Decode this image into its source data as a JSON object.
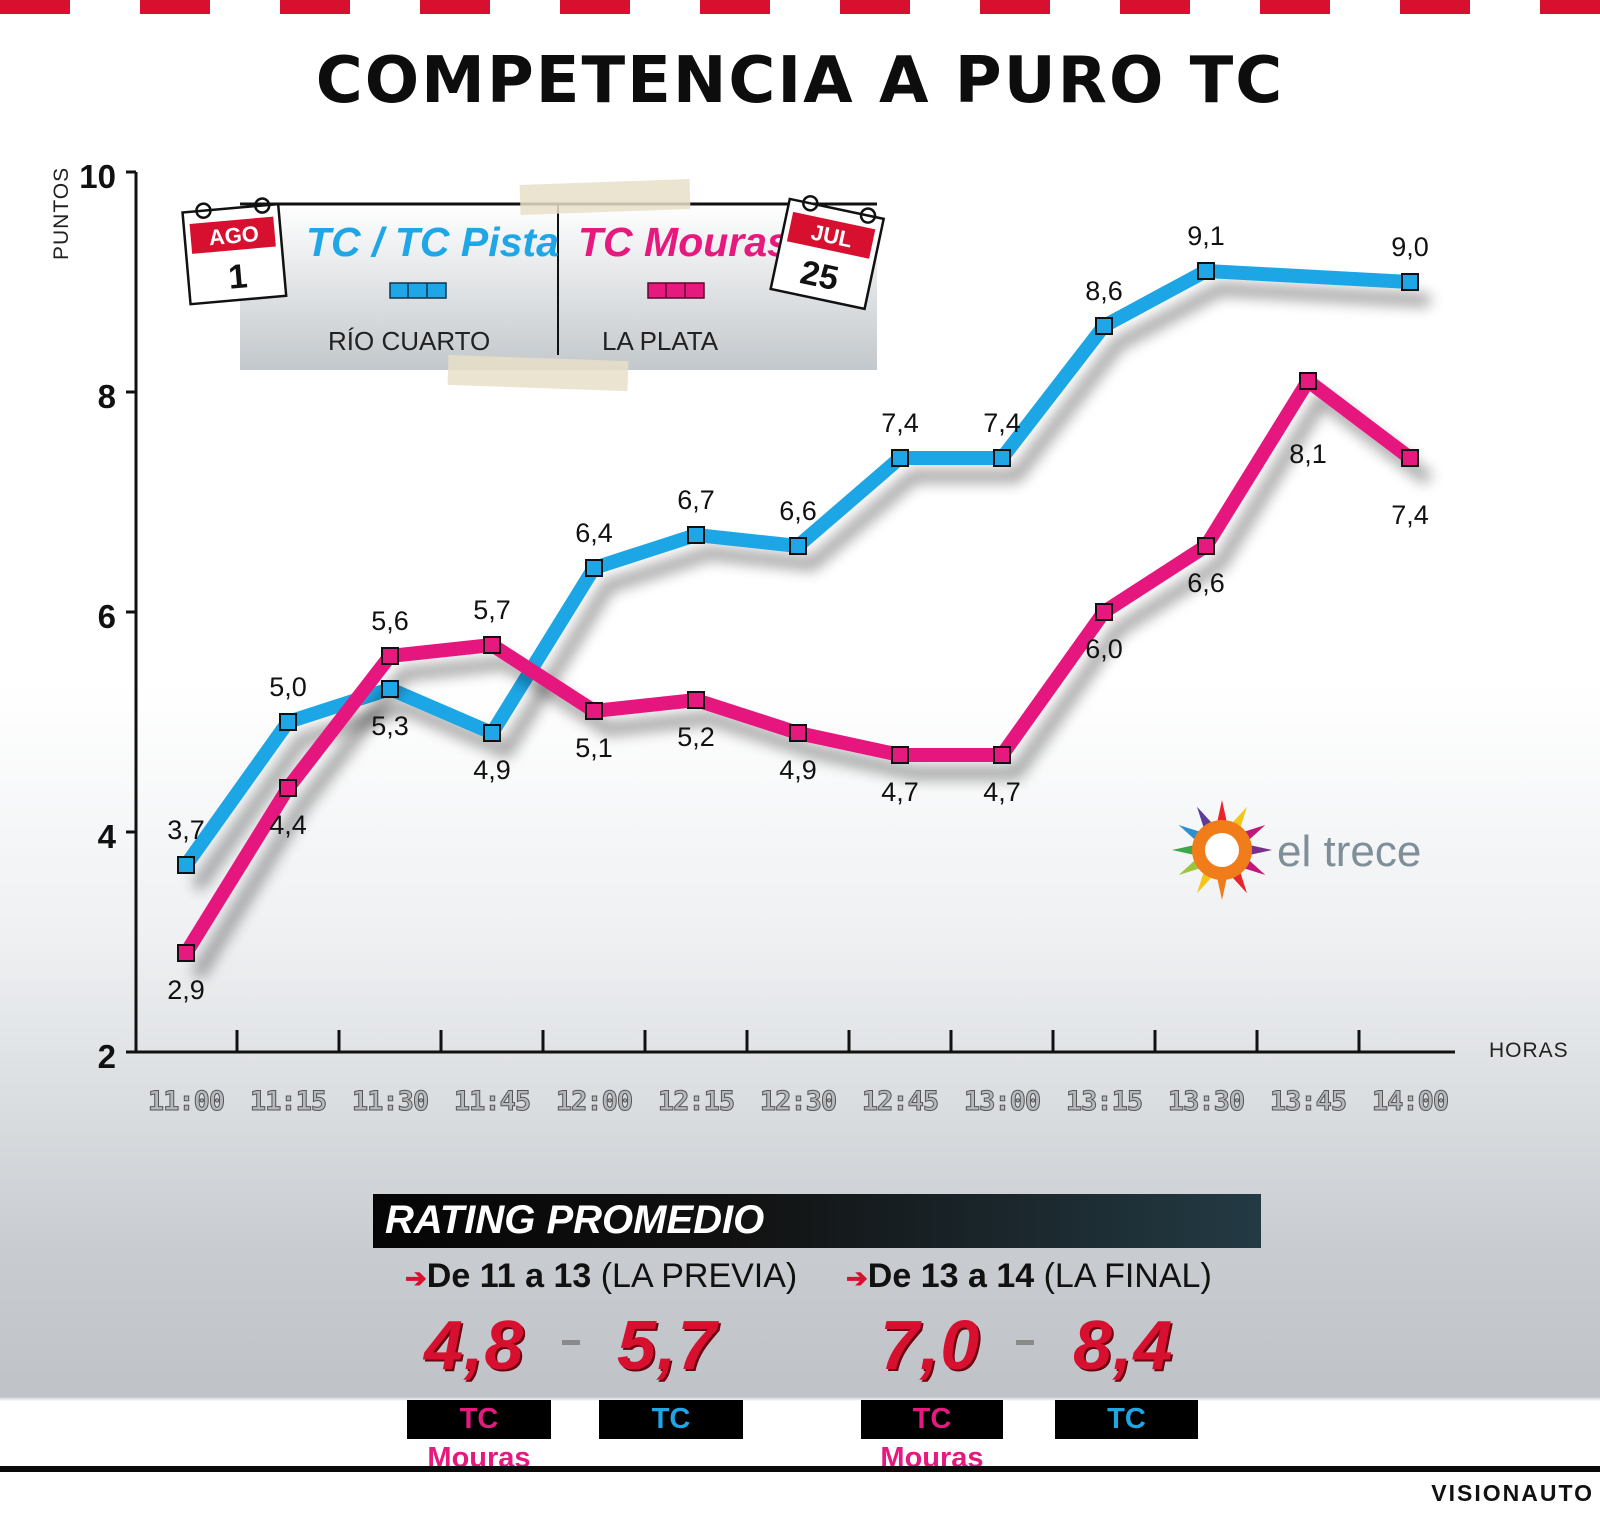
{
  "title": "COMPETENCIA A PURO TC",
  "colors": {
    "tc": "#1ea6e6",
    "mouras": "#e6197f",
    "accent_red": "#d8102f"
  },
  "legend": {
    "tc": {
      "name": "TC / TC Pista",
      "place": "RÍO CUARTO",
      "cal_month": "AGO",
      "cal_day": "1"
    },
    "mouras": {
      "name": "TC Mouras",
      "place": "LA PLATA",
      "cal_month": "JUL",
      "cal_day": "25"
    }
  },
  "brand": {
    "text": "el trece"
  },
  "chart_data": {
    "type": "line",
    "ylabel": "PUNTOS",
    "xlabel": "HORAS",
    "ylim": [
      2,
      10
    ],
    "yticks": [
      2,
      4,
      6,
      8,
      10
    ],
    "categories": [
      "11:00",
      "11:15",
      "11:30",
      "11:45",
      "12:00",
      "12:15",
      "12:30",
      "12:45",
      "13:00",
      "13:15",
      "13:30",
      "13:45",
      "14:00"
    ],
    "series": [
      {
        "name": "TC / TC Pista",
        "color": "#1ea6e6",
        "values": [
          3.7,
          5.0,
          5.3,
          4.9,
          6.4,
          6.7,
          6.6,
          7.4,
          7.4,
          8.6,
          9.1,
          null,
          9.0
        ],
        "labels": [
          "3,7",
          "5,0",
          "5,3",
          "4,9",
          "6,4",
          "6,7",
          "6,6",
          "7,4",
          "7,4",
          "8,6",
          "9,1",
          null,
          "9,0"
        ]
      },
      {
        "name": "TC Mouras",
        "color": "#e6197f",
        "values": [
          2.9,
          4.4,
          5.6,
          5.7,
          5.1,
          5.2,
          4.9,
          4.7,
          4.7,
          6.0,
          6.6,
          8.1,
          7.4
        ],
        "labels": [
          "2,9",
          "4,4",
          "5,6",
          "5,7",
          "5,1",
          "5,2",
          "4,9",
          "4,7",
          "4,7",
          "6,0",
          "6,6",
          "8,1",
          "7,4"
        ]
      }
    ]
  },
  "rating": {
    "title": "RATING PROMEDIO",
    "periods": [
      {
        "range": "De 11 a 13",
        "note": "(LA PREVIA)",
        "mouras": "4,8",
        "tc": "5,7"
      },
      {
        "range": "De 13 a 14",
        "note": "(LA FINAL)",
        "mouras": "7,0",
        "tc": "8,4"
      }
    ],
    "tag_mouras": "TC Mouras",
    "tag_tc": "TC"
  },
  "credit": "VISIONAUTO"
}
